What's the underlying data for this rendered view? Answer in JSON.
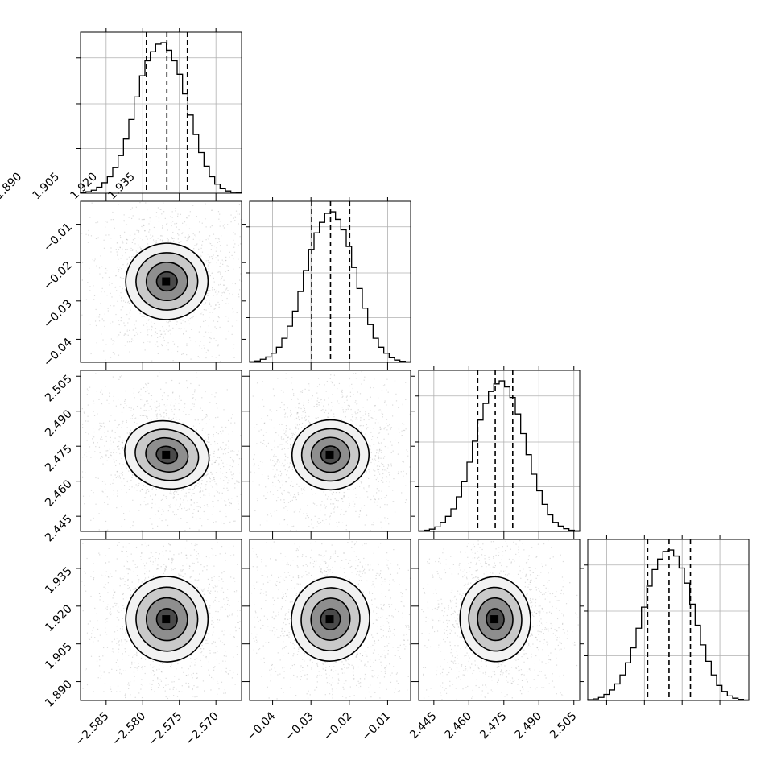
{
  "chart_data": {
    "type": "corner",
    "parameters": [
      {
        "ticks": [
          -2.585,
          -2.58,
          -2.575,
          -2.57
        ],
        "tick_labels": [
          "−2.585",
          "−2.580",
          "−2.575",
          "−2.570"
        ],
        "range": [
          -2.5885,
          -2.5665
        ],
        "median": -2.5767,
        "q16": -2.5795,
        "q84": -2.5739,
        "sigma": 0.0028
      },
      {
        "ticks": [
          -0.04,
          -0.03,
          -0.02,
          -0.01
        ],
        "tick_labels": [
          "−0.04",
          "−0.03",
          "−0.02",
          "−0.01"
        ],
        "range": [
          -0.046,
          -0.004
        ],
        "median": -0.0249,
        "q16": -0.0298,
        "q84": -0.0199,
        "sigma": 0.005
      },
      {
        "ticks": [
          2.445,
          2.46,
          2.475,
          2.49,
          2.505
        ],
        "tick_labels": [
          "2.445",
          "2.460",
          "2.475",
          "2.490",
          "2.505"
        ],
        "range": [
          2.4385,
          2.5075
        ],
        "median": 2.4713,
        "q16": 2.4638,
        "q84": 2.4788,
        "sigma": 0.0075
      },
      {
        "ticks": [
          1.89,
          1.905,
          1.92,
          1.935
        ],
        "tick_labels": [
          "1.890",
          "1.905",
          "1.920",
          "1.935"
        ],
        "range": [
          1.8825,
          1.9465
        ],
        "median": 1.9148,
        "q16": 1.9063,
        "q84": 1.9233,
        "sigma": 0.0085
      }
    ],
    "histograms": [
      [
        0.5,
        1,
        2,
        4,
        7,
        11,
        17,
        25,
        36,
        49,
        64,
        78,
        88,
        94,
        99,
        100,
        95,
        88,
        79,
        66,
        52,
        39,
        27,
        18,
        11,
        6,
        3,
        1.5,
        0.7,
        0.3
      ],
      [
        0.4,
        0.9,
        2,
        3.5,
        6,
        10,
        16,
        24,
        34,
        47,
        61,
        75,
        86,
        93,
        99,
        100,
        95,
        88,
        77,
        63,
        49,
        36,
        25,
        16,
        10,
        6,
        3,
        1.5,
        0.7,
        0.3
      ],
      [
        0.3,
        0.8,
        1.5,
        3,
        6,
        10,
        15,
        23,
        33,
        46,
        60,
        74,
        85,
        93,
        98,
        100,
        96,
        89,
        78,
        65,
        51,
        38,
        27,
        18,
        11,
        6,
        3.5,
        1.8,
        0.8,
        0.4
      ],
      [
        0.5,
        1,
        2,
        4,
        7,
        11,
        17,
        25,
        35,
        48,
        62,
        76,
        87,
        94,
        99,
        100,
        96,
        88,
        78,
        64,
        50,
        37,
        26,
        17,
        10,
        6,
        3,
        1.5,
        0.7,
        0.3
      ]
    ],
    "correlations": [
      [
        1,
        0.03,
        -0.25,
        0.02
      ],
      [
        0.03,
        1,
        0.02,
        -0.12
      ],
      [
        -0.25,
        0.02,
        1,
        0.05
      ],
      [
        0.02,
        -0.12,
        0.05,
        1
      ]
    ],
    "contour_levels_sigma": [
      0.5,
      1,
      1.5,
      2
    ]
  }
}
